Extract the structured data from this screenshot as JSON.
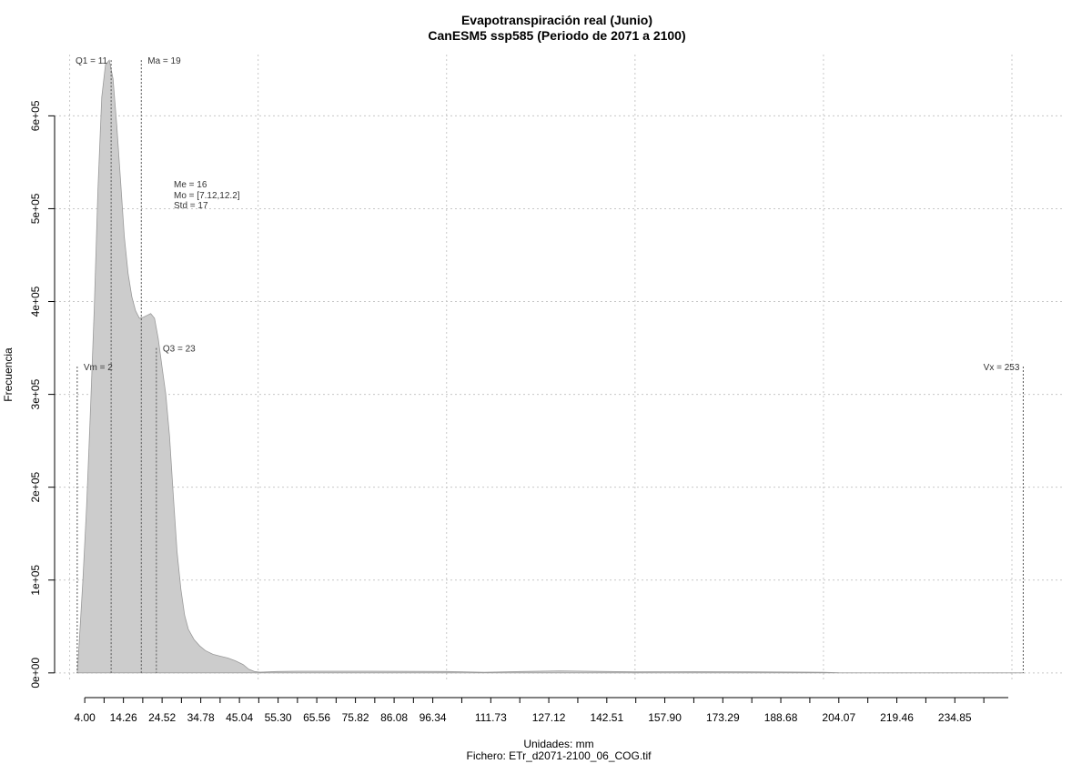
{
  "chart_data": {
    "type": "area",
    "title": "Evapotranspiración real (Junio)",
    "subtitle": "CanESM5 ssp585 (Periodo de 2071 a 2100)",
    "xlabel": "Unidades: mm",
    "ylabel": "Frecuencia",
    "footer": "Fichero: ETr_d2071-2100_06_COG.tif",
    "xlim": [
      -4,
      264
    ],
    "ylim": [
      -8000,
      666000
    ],
    "x_ticks": [
      4.0,
      14.26,
      24.52,
      34.78,
      45.04,
      55.3,
      65.56,
      75.82,
      86.08,
      96.34,
      111.73,
      127.12,
      142.51,
      157.9,
      173.29,
      188.68,
      204.07,
      219.46,
      234.85
    ],
    "x_tick_labels": [
      "4.00",
      "14.26",
      "24.52",
      "34.78",
      "45.04",
      "55.30",
      "65.56",
      "75.82",
      "86.08",
      "96.34",
      "111.73",
      "127.12",
      "142.51",
      "157.90",
      "173.29",
      "188.68",
      "204.07",
      "219.46",
      "234.85"
    ],
    "y_ticks": [
      0,
      100000,
      200000,
      300000,
      400000,
      500000,
      600000
    ],
    "y_tick_labels": [
      "0e+00",
      "1e+05",
      "2e+05",
      "3e+05",
      "4e+05",
      "5e+05",
      "6e+05"
    ],
    "grid": true,
    "fill_color": "#cccccc",
    "series": [
      {
        "x": [
          2,
          2.5,
          3.5,
          4.5,
          5.5,
          6.5,
          7.5,
          8.5,
          9.5,
          10.5,
          11.5,
          12.5,
          13.5,
          14.5,
          15.5,
          16.5,
          17.5,
          18.5,
          19.5,
          20.5,
          21.5,
          22.5,
          23.5,
          24.5,
          25.5,
          26.5,
          27.5,
          28.5,
          29.5,
          30.5,
          31.5,
          33,
          34.5,
          36,
          38,
          40,
          42,
          44,
          46,
          47.5,
          49,
          50.5,
          52,
          55,
          60,
          80,
          100,
          110,
          120,
          130,
          140,
          150,
          160,
          180,
          200,
          204,
          210,
          230,
          253
        ],
        "y": [
          0,
          30000,
          100000,
          180000,
          280000,
          390000,
          520000,
          620000,
          655000,
          660000,
          640000,
          590000,
          530000,
          470000,
          430000,
          405000,
          390000,
          382000,
          383000,
          385000,
          387000,
          382000,
          360000,
          330000,
          300000,
          255000,
          190000,
          130000,
          90000,
          62000,
          47000,
          36000,
          29000,
          24000,
          20000,
          18000,
          16000,
          13000,
          9000,
          4000,
          1500,
          800,
          1000,
          1500,
          1800,
          1800,
          1500,
          700,
          1500,
          2200,
          1600,
          1100,
          1300,
          1100,
          700,
          100,
          0,
          0,
          0
        ]
      }
    ],
    "vlines": [
      {
        "x": 2,
        "y_top": 330000,
        "label": "Vm = 2"
      },
      {
        "x": 11,
        "y_top": 660000,
        "label": "Q1 = 11"
      },
      {
        "x": 19,
        "y_top": 660000,
        "label": "Ma = 19"
      },
      {
        "x": 23,
        "y_top": 350000,
        "label": "Q3 = 23"
      },
      {
        "x": 253,
        "y_top": 330000,
        "label": "Vx = 253"
      }
    ],
    "stats_box": [
      "Me = 16",
      "Mo = [7.12,12.2]",
      "Std = 17"
    ]
  }
}
